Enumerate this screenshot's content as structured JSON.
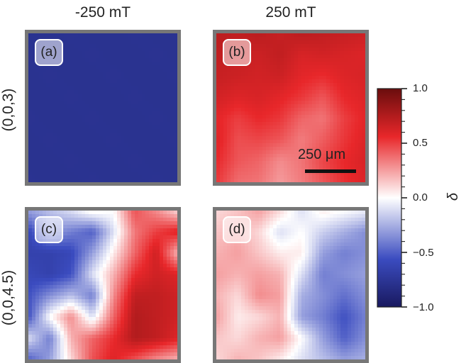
{
  "chart_data": {
    "type": "heatmap",
    "columns": [
      "-250 mT",
      "250 mT"
    ],
    "rows": [
      "(0,0,3)",
      "(0,0,4.5)"
    ],
    "panels": [
      {
        "tag": "(a)",
        "row": "(0,0,3)",
        "column": "-250 mT",
        "delta_grid": [
          [
            -0.78,
            -0.78,
            -0.77,
            -0.78,
            -0.78,
            -0.77,
            -0.78,
            -0.78
          ],
          [
            -0.77,
            -0.78,
            -0.78,
            -0.77,
            -0.78,
            -0.78,
            -0.77,
            -0.78
          ],
          [
            -0.78,
            -0.77,
            -0.78,
            -0.78,
            -0.77,
            -0.78,
            -0.78,
            -0.77
          ],
          [
            -0.78,
            -0.78,
            -0.77,
            -0.78,
            -0.78,
            -0.77,
            -0.78,
            -0.78
          ],
          [
            -0.77,
            -0.78,
            -0.78,
            -0.77,
            -0.78,
            -0.78,
            -0.77,
            -0.78
          ],
          [
            -0.78,
            -0.77,
            -0.78,
            -0.78,
            -0.77,
            -0.78,
            -0.78,
            -0.77
          ],
          [
            -0.78,
            -0.78,
            -0.77,
            -0.78,
            -0.78,
            -0.77,
            -0.78,
            -0.78
          ],
          [
            -0.77,
            -0.78,
            -0.78,
            -0.77,
            -0.78,
            -0.78,
            -0.77,
            -0.78
          ]
        ]
      },
      {
        "tag": "(b)",
        "row": "(0,0,3)",
        "column": "250 mT",
        "delta_grid": [
          [
            0.72,
            0.7,
            0.72,
            0.68,
            0.72,
            0.7,
            0.68,
            0.66
          ],
          [
            0.7,
            0.68,
            0.66,
            0.7,
            0.62,
            0.64,
            0.62,
            0.6
          ],
          [
            0.68,
            0.66,
            0.64,
            0.66,
            0.58,
            0.55,
            0.6,
            0.62
          ],
          [
            0.64,
            0.6,
            0.62,
            0.58,
            0.52,
            0.44,
            0.56,
            0.6
          ],
          [
            0.58,
            0.5,
            0.56,
            0.52,
            0.4,
            0.36,
            0.5,
            0.58
          ],
          [
            0.6,
            0.46,
            0.48,
            0.44,
            0.34,
            0.42,
            0.52,
            0.6
          ],
          [
            0.56,
            0.44,
            0.4,
            0.3,
            0.36,
            0.48,
            0.56,
            0.62
          ],
          [
            0.52,
            0.38,
            0.36,
            0.26,
            0.34,
            0.44,
            0.54,
            0.6
          ]
        ]
      },
      {
        "tag": "(c)",
        "row": "(0,0,4.5)",
        "column": "-250 mT",
        "delta_grid": [
          [
            -0.3,
            -0.2,
            -0.1,
            0.05,
            0.0,
            0.45,
            0.3,
            0.1
          ],
          [
            -0.6,
            -0.3,
            -0.4,
            -0.5,
            -0.1,
            0.35,
            0.5,
            0.6
          ],
          [
            -0.65,
            -0.65,
            -0.6,
            -0.3,
            0.05,
            0.4,
            0.65,
            0.2
          ],
          [
            -0.6,
            -0.65,
            -0.55,
            -0.1,
            0.2,
            0.55,
            0.65,
            0.6
          ],
          [
            -0.55,
            -0.35,
            -0.2,
            -0.4,
            0.3,
            0.7,
            0.7,
            0.65
          ],
          [
            -0.55,
            0.0,
            0.3,
            -0.1,
            0.4,
            0.75,
            0.7,
            0.65
          ],
          [
            -0.1,
            -0.4,
            0.2,
            0.4,
            0.55,
            0.75,
            0.7,
            0.6
          ],
          [
            -0.5,
            -0.3,
            0.1,
            0.45,
            0.6,
            0.45,
            0.3,
            0.2
          ]
        ]
      },
      {
        "tag": "(d)",
        "row": "(0,0,4.5)",
        "column": "250 mT",
        "delta_grid": [
          [
            0.1,
            0.15,
            0.25,
            0.1,
            -0.1,
            0.05,
            0.0,
            -0.05
          ],
          [
            0.15,
            0.2,
            0.1,
            -0.1,
            0.0,
            -0.15,
            -0.25,
            -0.35
          ],
          [
            0.2,
            0.25,
            0.15,
            0.05,
            0.05,
            -0.3,
            -0.4,
            -0.35
          ],
          [
            0.25,
            0.2,
            0.25,
            0.2,
            -0.1,
            -0.4,
            -0.35,
            -0.3
          ],
          [
            0.2,
            0.1,
            0.3,
            0.25,
            -0.25,
            -0.35,
            -0.45,
            -0.35
          ],
          [
            0.25,
            0.05,
            0.1,
            0.2,
            -0.3,
            -0.4,
            -0.55,
            -0.4
          ],
          [
            0.15,
            0.1,
            0.2,
            0.25,
            0.0,
            -0.3,
            -0.5,
            -0.35
          ],
          [
            0.1,
            0.2,
            0.15,
            0.05,
            -0.1,
            -0.2,
            -0.3,
            -0.25
          ]
        ]
      }
    ],
    "scale_bar": "250 μm",
    "colorbar": {
      "label": "δ",
      "range": [
        -1.0,
        1.0
      ],
      "ticks": [
        "1.0",
        "0.5",
        "0.0",
        "−0.5",
        "−1.0"
      ],
      "tick_values": [
        1.0,
        0.5,
        0.0,
        -0.5,
        -1.0
      ],
      "colormap": "seismic",
      "colors": {
        "neg_end": "#19195f",
        "neg_mid": "#3b4cc0",
        "zero": "#ffffff",
        "pos_mid": "#e8272a",
        "pos_end": "#6a0d0d"
      }
    }
  }
}
